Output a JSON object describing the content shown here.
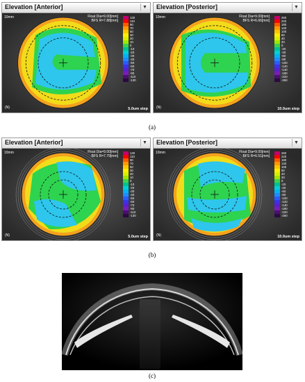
{
  "figure": {
    "panels": [
      {
        "id": "a-anterior",
        "title": "Elevation [Anterior]",
        "bfs_line1": "Float   Dia=9.00[mm]",
        "bfs_line2": "BFS R=7.88[mm]",
        "corner_tl": "10mm",
        "corner_bl": "(N)",
        "step": "5.0um step",
        "scale_labels": [
          "130",
          "110",
          "90",
          "70",
          "50",
          "30",
          "20",
          "10",
          "0",
          "-10",
          "-20",
          "-30",
          "-40",
          "-50",
          "-60",
          "-70",
          "-90",
          "-110",
          "-130"
        ],
        "pattern": "anterior"
      },
      {
        "id": "a-posterior",
        "title": "Elevation [Posterior]",
        "bfs_line1": "Float   Dia=9.00[mm]",
        "bfs_line2": "BFS R=6.66[mm]",
        "corner_tl": "10mm",
        "corner_bl": "(N)",
        "step": "10.0um step",
        "scale_labels": [
          "260",
          "220",
          "180",
          "140",
          "100",
          "60",
          "40",
          "20",
          "0",
          "-20",
          "-40",
          "-60",
          "-80",
          "-100",
          "-120",
          "-140",
          "-180",
          "-220",
          "-260"
        ],
        "pattern": "posterior"
      },
      {
        "id": "b-anterior",
        "title": "Elevation [Anterior]",
        "bfs_line1": "Float   Dia=9.00[mm]",
        "bfs_line2": "BFS R=7.79[mm]",
        "corner_tl": "10mm",
        "corner_bl": "(N)",
        "step": "5.0um step",
        "scale_labels": [
          "130",
          "110",
          "90",
          "70",
          "50",
          "30",
          "20",
          "10",
          "0",
          "-10",
          "-20",
          "-30",
          "-40",
          "-50",
          "-60",
          "-70",
          "-90",
          "-110",
          "-130"
        ],
        "pattern": "anterior2"
      },
      {
        "id": "b-posterior",
        "title": "Elevation [Posterior]",
        "bfs_line1": "Float   Dia=9.00[mm]",
        "bfs_line2": "BFS R=6.51[mm]",
        "corner_tl": "10mm",
        "corner_bl": "(N)",
        "step": "10.0um step",
        "scale_labels": [
          "260",
          "220",
          "180",
          "140",
          "100",
          "60",
          "40",
          "20",
          "0",
          "-20",
          "-40",
          "-60",
          "-80",
          "-100",
          "-120",
          "-140",
          "-180",
          "-220",
          "-260"
        ],
        "pattern": "posterior2"
      }
    ],
    "captions": {
      "a": "(a)",
      "b": "(b)",
      "c": "(c)"
    },
    "colors": {
      "scale": [
        "#c2006a",
        "#ff0000",
        "#ff5a00",
        "#ff9900",
        "#ffc400",
        "#ffee00",
        "#d8ef00",
        "#9ee600",
        "#3fd24a",
        "#00c28f",
        "#00cfd6",
        "#00b4f0",
        "#1e8cff",
        "#2a5cff",
        "#3a32ea",
        "#5a1fd0",
        "#7a1cb8",
        "#4a1070",
        "#2a0a40"
      ],
      "orange": "#f4a21e",
      "yellow": "#f2dc1a",
      "green": "#2ed34f",
      "cyan": "#2ec6ec"
    },
    "icons": {
      "dropdown": "chevron-down-icon"
    }
  }
}
